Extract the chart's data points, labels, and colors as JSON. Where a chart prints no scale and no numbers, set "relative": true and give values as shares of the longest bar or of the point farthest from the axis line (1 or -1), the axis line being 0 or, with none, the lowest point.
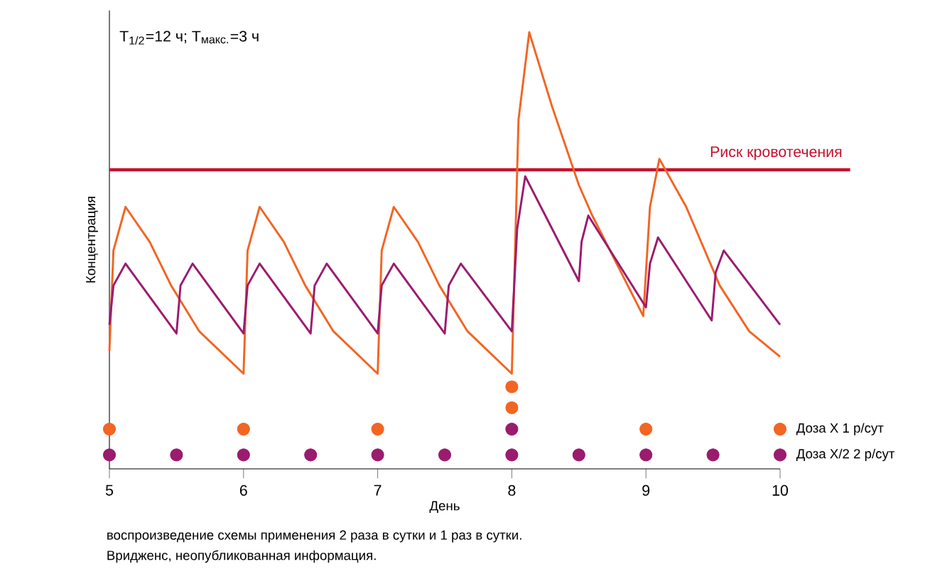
{
  "chart_data": {
    "type": "line",
    "relative": true,
    "xlabel": "День",
    "ylabel": "Концентрация",
    "xlim": [
      5,
      10
    ],
    "xticks": [
      5,
      6,
      7,
      8,
      9,
      10
    ],
    "annotations": [
      "T$_{1/2}$=12 ч; T$_{макс.}$=3 ч",
      "воспроизведение схемы применения 2 раза в сутки и 1 раз в сутки.",
      "Вридженс, неопубликованная информация."
    ],
    "ref_lines": [
      {
        "axis": "y",
        "value": 0.685,
        "label": "Риск кровотечения",
        "color": "#c8102e"
      }
    ],
    "series": [
      {
        "color": "#f26522",
        "x": [
          5,
          5.03,
          5.12,
          5.3,
          5.46,
          5.67,
          6.0,
          6.03,
          6.12,
          6.3,
          6.46,
          6.67,
          7.0,
          7.03,
          7.12,
          7.3,
          7.46,
          7.67,
          8.0,
          8.05,
          8.13,
          8.3,
          8.5,
          8.6,
          8.98,
          9.03,
          9.1,
          9.3,
          9.55,
          9.77,
          10
        ],
        "values": [
          0.27,
          0.5,
          0.6,
          0.52,
          0.42,
          0.315,
          0.218,
          0.5,
          0.6,
          0.52,
          0.42,
          0.315,
          0.218,
          0.5,
          0.6,
          0.52,
          0.42,
          0.315,
          0.218,
          0.8,
          1.0,
          0.83,
          0.65,
          0.58,
          0.35,
          0.6,
          0.71,
          0.6,
          0.42,
          0.315,
          0.257
        ]
      },
      {
        "color": "#9b1b6e",
        "x": [
          5,
          5.03,
          5.12,
          5.5,
          5.53,
          5.62,
          6.0,
          6.03,
          6.12,
          6.5,
          6.53,
          6.62,
          7.0,
          7.03,
          7.12,
          7.5,
          7.53,
          7.62,
          8.0,
          8.04,
          8.1,
          8.5,
          8.52,
          8.57,
          9.0,
          9.03,
          9.09,
          9.49,
          9.52,
          9.58,
          10
        ],
        "values": [
          0.33,
          0.42,
          0.47,
          0.31,
          0.42,
          0.47,
          0.31,
          0.42,
          0.47,
          0.31,
          0.42,
          0.47,
          0.31,
          0.42,
          0.47,
          0.31,
          0.42,
          0.47,
          0.315,
          0.55,
          0.67,
          0.43,
          0.52,
          0.58,
          0.37,
          0.47,
          0.53,
          0.34,
          0.45,
          0.5,
          0.33
        ]
      },
      {
        "type": "scatter",
        "name": "Доза X 1 р/сут",
        "color": "#f26522",
        "x": [
          5,
          6,
          7,
          8,
          8,
          9,
          10
        ],
        "values": [
          0.091,
          0.091,
          0.091,
          0.14,
          0.188,
          0.091,
          0.091
        ]
      },
      {
        "type": "scatter",
        "name": "Доза X/2  2 р/сут",
        "color": "#9b1b6e",
        "x": [
          5,
          5.5,
          6,
          6.5,
          7,
          7.5,
          8,
          8,
          8.5,
          9,
          9.5,
          10
        ],
        "values": [
          0.032,
          0.032,
          0.032,
          0.032,
          0.032,
          0.032,
          0.091,
          0.032,
          0.032,
          0.032,
          0.032,
          0.032
        ]
      }
    ]
  }
}
